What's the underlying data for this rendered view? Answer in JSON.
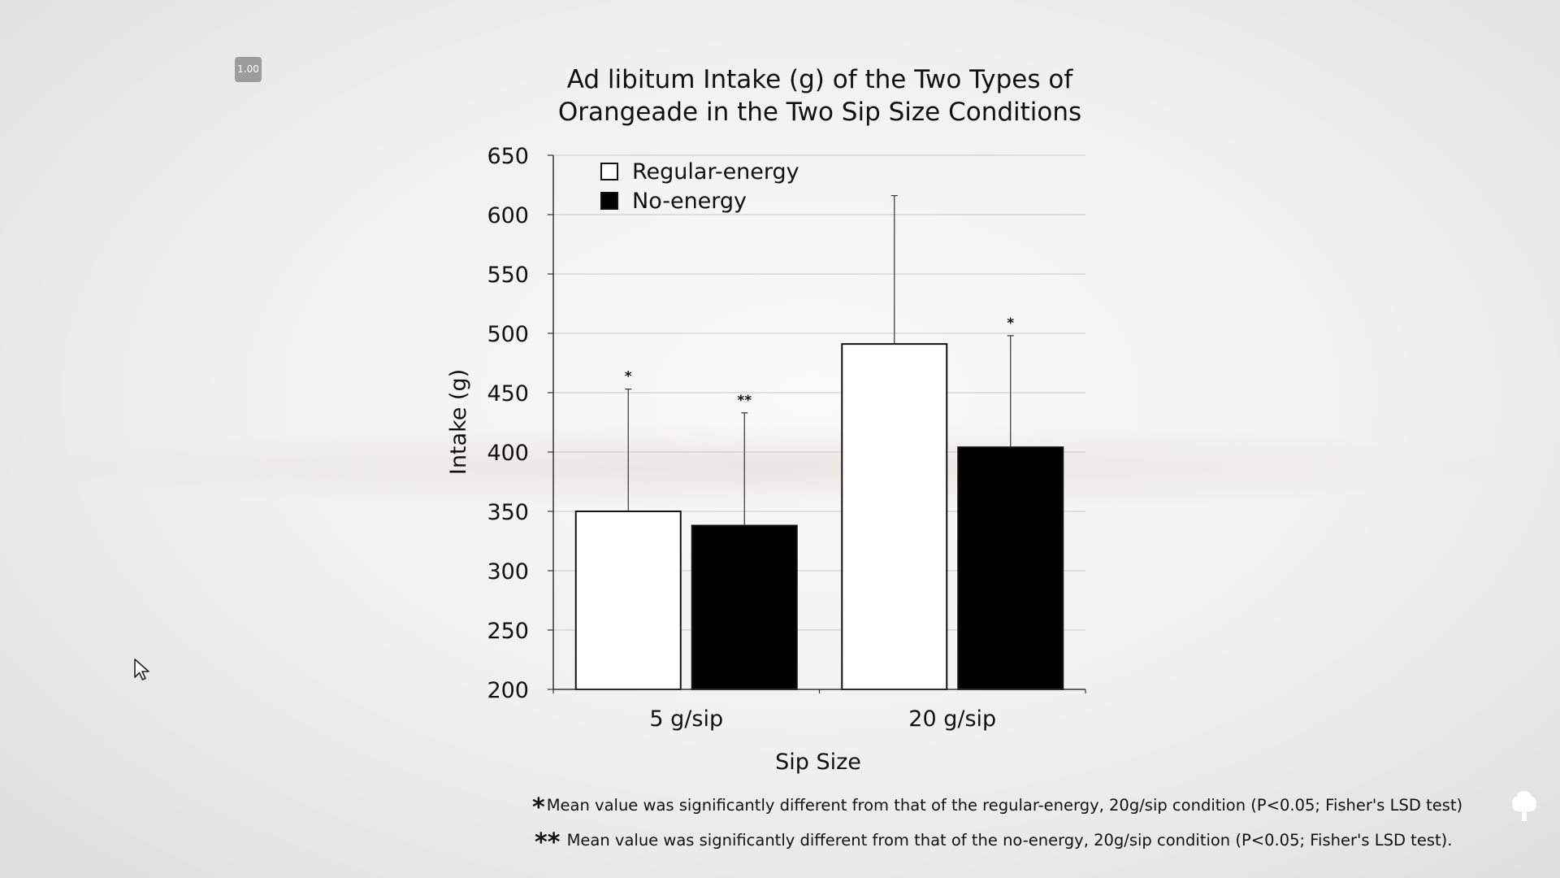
{
  "player": {
    "speed_badge": "1.00",
    "cursor_icon": "mouse-pointer-icon",
    "corner_icon": "tree-icon"
  },
  "chart_data": {
    "type": "bar",
    "title_lines": [
      "Ad libitum Intake (g) of the Two Types of",
      "Orangeade in the Two Sip Size Conditions"
    ],
    "xlabel": "Sip Size",
    "ylabel": "Intake (g)",
    "categories": [
      "5 g/sip",
      "20 g/sip"
    ],
    "ylim": [
      200,
      650
    ],
    "yticks": [
      200,
      250,
      300,
      350,
      400,
      450,
      500,
      550,
      600,
      650
    ],
    "grid": true,
    "legend_position": "top-left",
    "series": [
      {
        "name": "Regular-energy",
        "color": "#ffffff",
        "values": [
          350,
          491
        ],
        "error_upper": [
          453,
          616
        ],
        "annotations": [
          "*",
          ""
        ]
      },
      {
        "name": "No-energy",
        "color": "#000000",
        "values": [
          338,
          404
        ],
        "error_upper": [
          433,
          498
        ],
        "annotations": [
          "**",
          "*"
        ]
      }
    ]
  },
  "footnotes": [
    {
      "mark": "*",
      "text": "Mean value was significantly different from that of the regular-energy, 20g/sip condition (P<0.05; Fisher's LSD test)"
    },
    {
      "mark": "**",
      "text": " Mean value was significantly different from that of the no-energy, 20g/sip condition (P<0.05; Fisher's LSD test)."
    }
  ]
}
